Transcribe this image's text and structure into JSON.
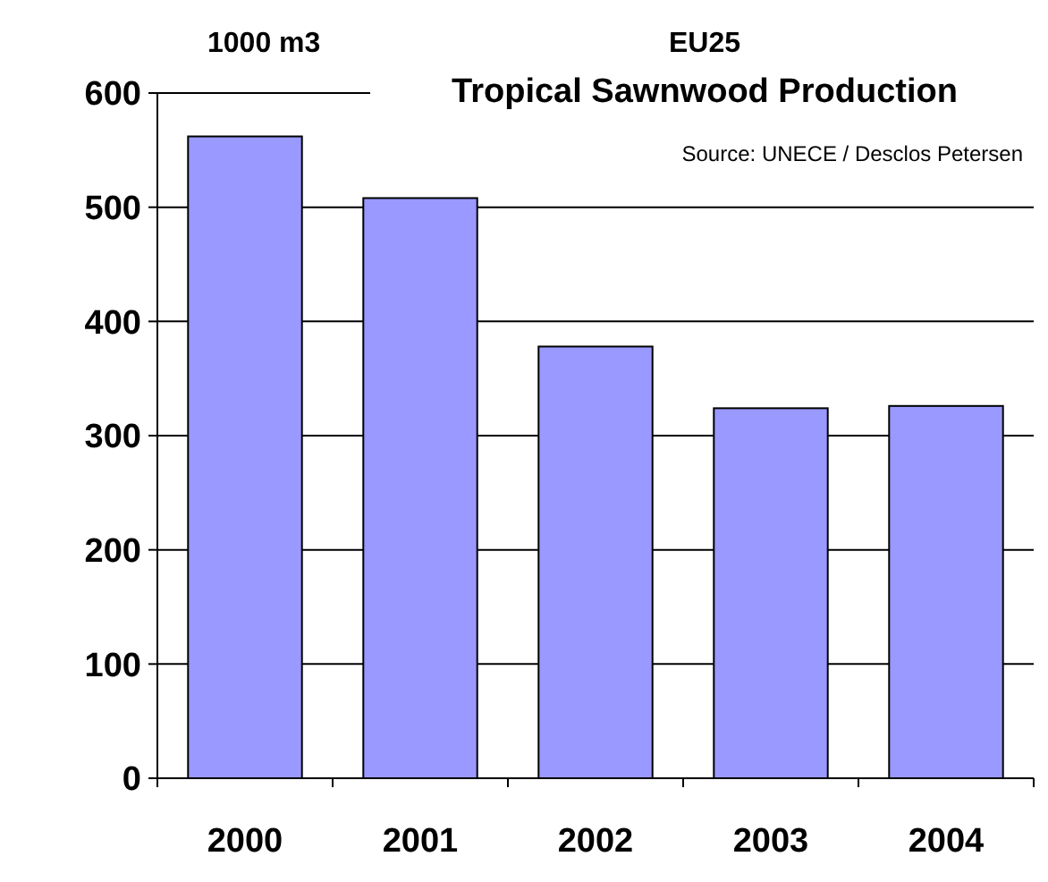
{
  "chart_data": {
    "type": "bar",
    "title": "EU25",
    "subtitle": "Tropical Sawnwood Production",
    "ylabel": "1000 m3",
    "annotations": [
      "Source: UNECE / Desclos Petersen"
    ],
    "categories": [
      "2000",
      "2001",
      "2002",
      "2003",
      "2004"
    ],
    "values": [
      562,
      508,
      378,
      324,
      326
    ],
    "color": "#9999ff",
    "ylim": [
      0,
      600
    ],
    "yticks": [
      0,
      100,
      200,
      300,
      400,
      500,
      600
    ],
    "grid": "y"
  }
}
